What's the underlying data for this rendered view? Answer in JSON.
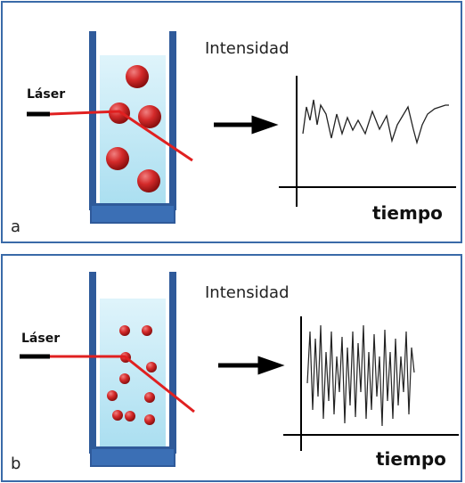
{
  "panels": [
    {
      "label": "a",
      "laser": "Láser",
      "y_axis": "Intensidad",
      "x_axis": "tiempo"
    },
    {
      "label": "b",
      "laser": "Láser",
      "y_axis": "Intensidad",
      "x_axis": "tiempo"
    }
  ]
}
